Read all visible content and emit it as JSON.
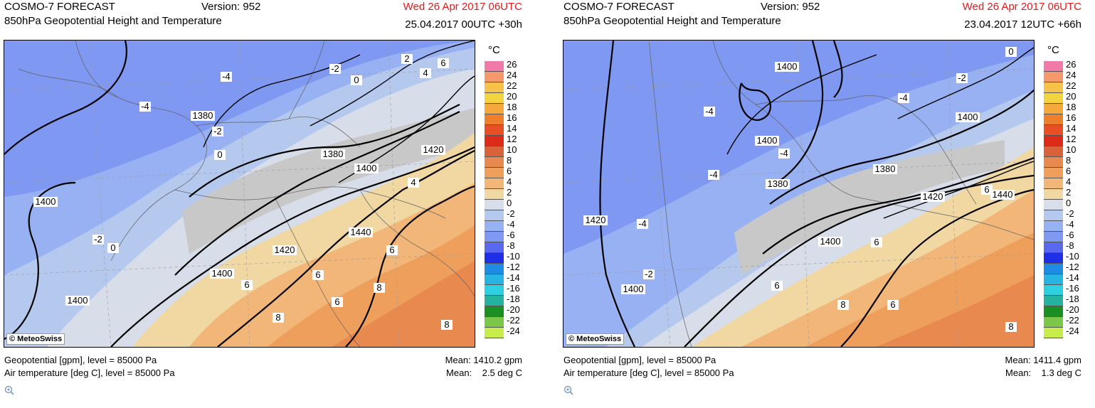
{
  "panels": [
    {
      "title": "COSMO-7 FORECAST",
      "subtitle": "850hPa Geopotential Height and Temperature",
      "version": "Version: 952",
      "valid": "Wed 26 Apr 2017 06UTC",
      "run": "25.04.2017 00UTC +30h",
      "unit": "°C",
      "logo": "© MeteoSwiss",
      "footer_geo": "Geopotential [gpm], level = 85000 Pa",
      "footer_temp": "Air temperature [deg C], level = 85000 Pa",
      "mean_geo": "Mean: 1410.2 gpm",
      "mean_temp": "Mean:    2.5 deg C",
      "labels": [
        "-4",
        "-4",
        "-2",
        "0",
        "2",
        "4",
        "6",
        "1380",
        "-2",
        "0",
        "1380",
        "1400",
        "1420",
        "4",
        "1400",
        "-2",
        "0",
        "1440",
        "6",
        "1420",
        "1400",
        "6",
        "6",
        "8",
        "1400",
        "6",
        "8",
        "8"
      ]
    },
    {
      "title": "COSMO-7 FORECAST",
      "subtitle": "850hPa Geopotential Height and Temperature",
      "version": "Version: 952",
      "valid": "Wed 26 Apr 2017 06UTC",
      "run": "23.04.2017 12UTC +66h",
      "unit": "°C",
      "logo": "© MeteoSwiss",
      "footer_geo": "Geopotential [gpm], level = 85000 Pa",
      "footer_temp": "Air temperature [deg C], level = 85000 Pa",
      "mean_geo": "Mean: 1411.4 gpm",
      "mean_temp": "Mean:    1.3 deg C",
      "labels": [
        "0",
        "1400",
        "-2",
        "-4",
        "-4",
        "1400",
        "1400",
        "-4",
        "-4",
        "1380",
        "1380",
        "1420",
        "6",
        "1440",
        "1420",
        "-4",
        "1400",
        "6",
        "-2",
        "1400",
        "6",
        "8",
        "6",
        "8"
      ]
    }
  ],
  "colorbar": {
    "levels": [
      "26",
      "24",
      "22",
      "20",
      "18",
      "16",
      "14",
      "12",
      "10",
      "8",
      "6",
      "4",
      "2",
      "0",
      "-2",
      "-4",
      "-6",
      "-8",
      "-10",
      "-12",
      "-14",
      "-16",
      "-18",
      "-20",
      "-22",
      "-24"
    ],
    "colors": [
      "#f07aa8",
      "#f4996b",
      "#f6c24c",
      "#f3d33e",
      "#f4a93a",
      "#ee7f2c",
      "#e94f25",
      "#dd2b1a",
      "#d9623a",
      "#e88a4f",
      "#ef9f5c",
      "#f2b679",
      "#f1d7a2",
      "#d7dee9",
      "#b5c9ee",
      "#97b1f2",
      "#7f98f1",
      "#5a67ef",
      "#1f2fe6",
      "#1d8ce2",
      "#28b4e3",
      "#2ecfe0",
      "#25b3a0",
      "#1b8f22",
      "#7cc64a",
      "#c7ec4c"
    ]
  }
}
